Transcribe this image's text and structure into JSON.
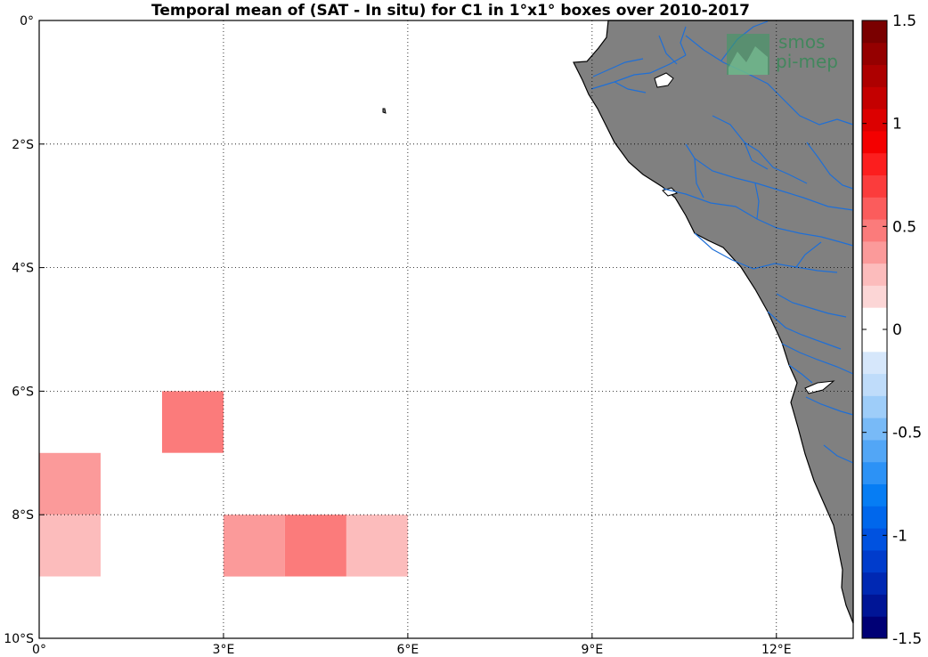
{
  "map": {
    "title": "Temporal mean of (SAT - In situ) for C1 in 1°x1° boxes over 2010-2017",
    "lon_range": [
      0,
      13.25
    ],
    "lat_range": [
      -10,
      0
    ],
    "x_ticks": [
      "0°",
      "3°E",
      "6°E",
      "9°E",
      "12°E"
    ],
    "y_ticks": [
      "0°",
      "2°S",
      "4°S",
      "6°S",
      "8°S",
      "10°S"
    ],
    "land_color": "#808080",
    "river_color": "#1f6fd6",
    "cells": [
      {
        "lon": 0,
        "lat": -3,
        "value": 0.1
      },
      {
        "lon": 1,
        "lat": -4,
        "value": -0.1
      },
      {
        "lon": 1,
        "lat": -5,
        "value": 0.1
      },
      {
        "lon": 0,
        "lat": -6,
        "value": 0.1
      },
      {
        "lon": 2,
        "lat": -6,
        "value": 0.5
      },
      {
        "lon": 0,
        "lat": -7,
        "value": 0.4
      },
      {
        "lon": 1,
        "lat": -7,
        "value": 0.1
      },
      {
        "lon": 2,
        "lat": -7,
        "value": 0.1
      },
      {
        "lon": 0,
        "lat": -8,
        "value": 0.25
      },
      {
        "lon": 3,
        "lat": -8,
        "value": 0.35
      },
      {
        "lon": 4,
        "lat": -8,
        "value": 0.5
      },
      {
        "lon": 5,
        "lat": -8,
        "value": 0.25
      },
      {
        "lon": 0,
        "lat": -9,
        "value": 0.1
      },
      {
        "lon": 4,
        "lat": -9,
        "value": -0.1
      }
    ]
  },
  "colorbar": {
    "range": [
      -1.5,
      1.5
    ],
    "tick_labels": [
      "1.5",
      "1",
      "0.5",
      "0",
      "-0.5",
      "-1",
      "-1.5"
    ],
    "colors": [
      "#000075",
      "#001596",
      "#0028b3",
      "#003ccc",
      "#0052e0",
      "#0067ec",
      "#067df4",
      "#2c92f6",
      "#52a6f6",
      "#78baf7",
      "#9ecdf9",
      "#bfdcfa",
      "#d6e7fb",
      "#ffffff",
      "#ffffff",
      "#fcd6d6",
      "#fcbcbc",
      "#fb9a9a",
      "#fb7b7b",
      "#fb5c5c",
      "#fb3c3c",
      "#fc1e1e",
      "#f40000",
      "#dc0000",
      "#c40000",
      "#ad0000",
      "#950000",
      "#7a0000"
    ]
  },
  "logo": {
    "line1": "smos",
    "line2": "pi-mep"
  }
}
